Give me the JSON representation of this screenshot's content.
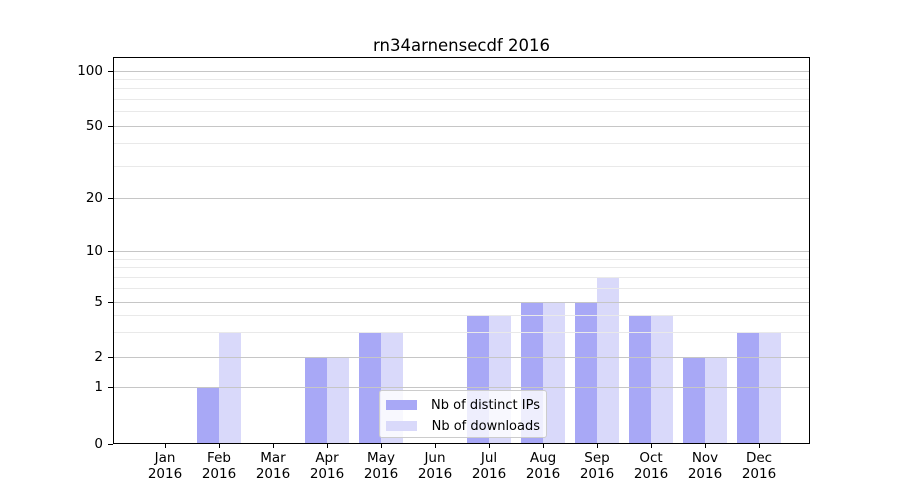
{
  "title": "rn34arnensecdf 2016",
  "chart_data": {
    "type": "bar",
    "title": "rn34arnensecdf 2016",
    "categories": [
      "Jan",
      "Feb",
      "Mar",
      "Apr",
      "May",
      "Jun",
      "Jul",
      "Aug",
      "Sep",
      "Oct",
      "Nov",
      "Dec"
    ],
    "x_tick_year": "2016",
    "series": [
      {
        "name": "Nb of distinct IPs",
        "color": "#a8a8f6",
        "values": [
          0,
          1,
          0,
          2,
          3,
          0,
          4,
          5,
          5,
          4,
          2,
          3
        ]
      },
      {
        "name": "Nb of downloads",
        "color": "#d9d9fa",
        "values": [
          0,
          3,
          0,
          2,
          3,
          0,
          4,
          5,
          7,
          4,
          2,
          3
        ]
      }
    ],
    "yscale": "symlog",
    "ylim": [
      0,
      120
    ],
    "yticks": [
      0,
      1,
      2,
      5,
      10,
      20,
      50,
      100
    ],
    "minor_yticks": [
      3,
      4,
      6,
      7,
      8,
      9,
      30,
      40,
      60,
      70,
      80,
      90
    ],
    "grid": "both",
    "legend_position": "inside lower center"
  },
  "legend": {
    "entries": [
      {
        "label": "Nb of distinct IPs",
        "color": "#a8a8f6"
      },
      {
        "label": "Nb of downloads",
        "color": "#d9d9fa"
      }
    ]
  }
}
